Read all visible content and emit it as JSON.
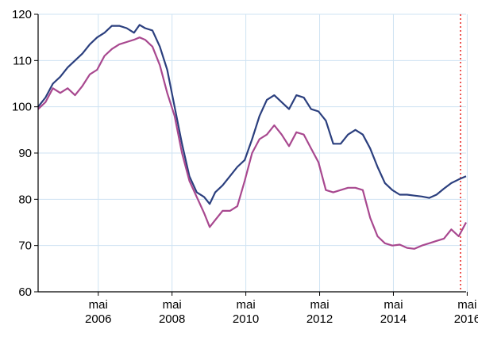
{
  "chart_data": {
    "type": "line",
    "xlim": [
      2004.7,
      2016.3
    ],
    "ylim": [
      60,
      120
    ],
    "yticks": [
      60,
      70,
      80,
      90,
      100,
      110,
      120
    ],
    "xticks": [
      {
        "x": 2006.33,
        "top": "mai",
        "bottom": "2006"
      },
      {
        "x": 2008.33,
        "top": "mai",
        "bottom": "2008"
      },
      {
        "x": 2010.33,
        "top": "mai",
        "bottom": "2010"
      },
      {
        "x": 2012.33,
        "top": "mai",
        "bottom": "2012"
      },
      {
        "x": 2014.33,
        "top": "mai",
        "bottom": "2014"
      },
      {
        "x": 2016.33,
        "top": "mai",
        "bottom": "2016"
      }
    ],
    "grid": true,
    "marker_line": {
      "x": 2016.15,
      "color": "#e8302c",
      "style": "dotted"
    },
    "series": [
      {
        "color": "#2b3f7e",
        "points": [
          [
            2004.7,
            100
          ],
          [
            2004.9,
            102
          ],
          [
            2005.1,
            105
          ],
          [
            2005.3,
            106.5
          ],
          [
            2005.5,
            108.5
          ],
          [
            2005.7,
            110
          ],
          [
            2005.9,
            111.5
          ],
          [
            2006.1,
            113.5
          ],
          [
            2006.3,
            115
          ],
          [
            2006.5,
            116
          ],
          [
            2006.7,
            117.5
          ],
          [
            2006.9,
            117.5
          ],
          [
            2007.1,
            117
          ],
          [
            2007.3,
            116
          ],
          [
            2007.45,
            117.7
          ],
          [
            2007.6,
            117
          ],
          [
            2007.8,
            116.5
          ],
          [
            2008.0,
            113
          ],
          [
            2008.2,
            108
          ],
          [
            2008.4,
            100
          ],
          [
            2008.6,
            92
          ],
          [
            2008.8,
            85
          ],
          [
            2009.0,
            81.5
          ],
          [
            2009.2,
            80.5
          ],
          [
            2009.35,
            79
          ],
          [
            2009.5,
            81.5
          ],
          [
            2009.7,
            83
          ],
          [
            2009.9,
            85
          ],
          [
            2010.1,
            87
          ],
          [
            2010.3,
            88.5
          ],
          [
            2010.5,
            93
          ],
          [
            2010.7,
            98
          ],
          [
            2010.9,
            101.5
          ],
          [
            2011.1,
            102.5
          ],
          [
            2011.3,
            101
          ],
          [
            2011.5,
            99.5
          ],
          [
            2011.7,
            102.5
          ],
          [
            2011.9,
            102
          ],
          [
            2012.1,
            99.5
          ],
          [
            2012.3,
            99
          ],
          [
            2012.5,
            97
          ],
          [
            2012.7,
            92
          ],
          [
            2012.9,
            92
          ],
          [
            2013.1,
            94
          ],
          [
            2013.3,
            95
          ],
          [
            2013.5,
            94
          ],
          [
            2013.7,
            91
          ],
          [
            2013.9,
            87
          ],
          [
            2014.1,
            83.5
          ],
          [
            2014.3,
            82
          ],
          [
            2014.5,
            81
          ],
          [
            2014.7,
            81
          ],
          [
            2014.9,
            80.8
          ],
          [
            2015.1,
            80.6
          ],
          [
            2015.3,
            80.3
          ],
          [
            2015.5,
            81
          ],
          [
            2015.7,
            82.3
          ],
          [
            2015.9,
            83.5
          ],
          [
            2016.1,
            84.3
          ],
          [
            2016.3,
            85
          ]
        ]
      },
      {
        "color": "#a8488f",
        "points": [
          [
            2004.7,
            99.5
          ],
          [
            2004.9,
            101
          ],
          [
            2005.1,
            104
          ],
          [
            2005.3,
            103
          ],
          [
            2005.5,
            104
          ],
          [
            2005.7,
            102.5
          ],
          [
            2005.9,
            104.5
          ],
          [
            2006.1,
            107
          ],
          [
            2006.3,
            108
          ],
          [
            2006.5,
            111
          ],
          [
            2006.7,
            112.5
          ],
          [
            2006.9,
            113.5
          ],
          [
            2007.1,
            114
          ],
          [
            2007.3,
            114.5
          ],
          [
            2007.45,
            115
          ],
          [
            2007.6,
            114.5
          ],
          [
            2007.8,
            113
          ],
          [
            2008.0,
            109
          ],
          [
            2008.2,
            103
          ],
          [
            2008.4,
            98
          ],
          [
            2008.6,
            90
          ],
          [
            2008.8,
            84
          ],
          [
            2009.0,
            80.5
          ],
          [
            2009.2,
            77
          ],
          [
            2009.35,
            74
          ],
          [
            2009.5,
            75.5
          ],
          [
            2009.7,
            77.5
          ],
          [
            2009.9,
            77.5
          ],
          [
            2010.1,
            78.5
          ],
          [
            2010.3,
            84
          ],
          [
            2010.5,
            90
          ],
          [
            2010.7,
            93
          ],
          [
            2010.9,
            94
          ],
          [
            2011.1,
            96
          ],
          [
            2011.3,
            94
          ],
          [
            2011.5,
            91.5
          ],
          [
            2011.7,
            94.5
          ],
          [
            2011.9,
            94
          ],
          [
            2012.1,
            91
          ],
          [
            2012.3,
            88
          ],
          [
            2012.5,
            82
          ],
          [
            2012.7,
            81.5
          ],
          [
            2012.9,
            82
          ],
          [
            2013.1,
            82.5
          ],
          [
            2013.3,
            82.5
          ],
          [
            2013.5,
            82
          ],
          [
            2013.7,
            76
          ],
          [
            2013.9,
            72
          ],
          [
            2014.1,
            70.5
          ],
          [
            2014.3,
            70
          ],
          [
            2014.5,
            70.2
          ],
          [
            2014.7,
            69.5
          ],
          [
            2014.9,
            69.3
          ],
          [
            2015.1,
            70
          ],
          [
            2015.3,
            70.5
          ],
          [
            2015.5,
            71
          ],
          [
            2015.7,
            71.5
          ],
          [
            2015.9,
            73.5
          ],
          [
            2016.1,
            72
          ],
          [
            2016.3,
            75
          ]
        ]
      }
    ]
  }
}
